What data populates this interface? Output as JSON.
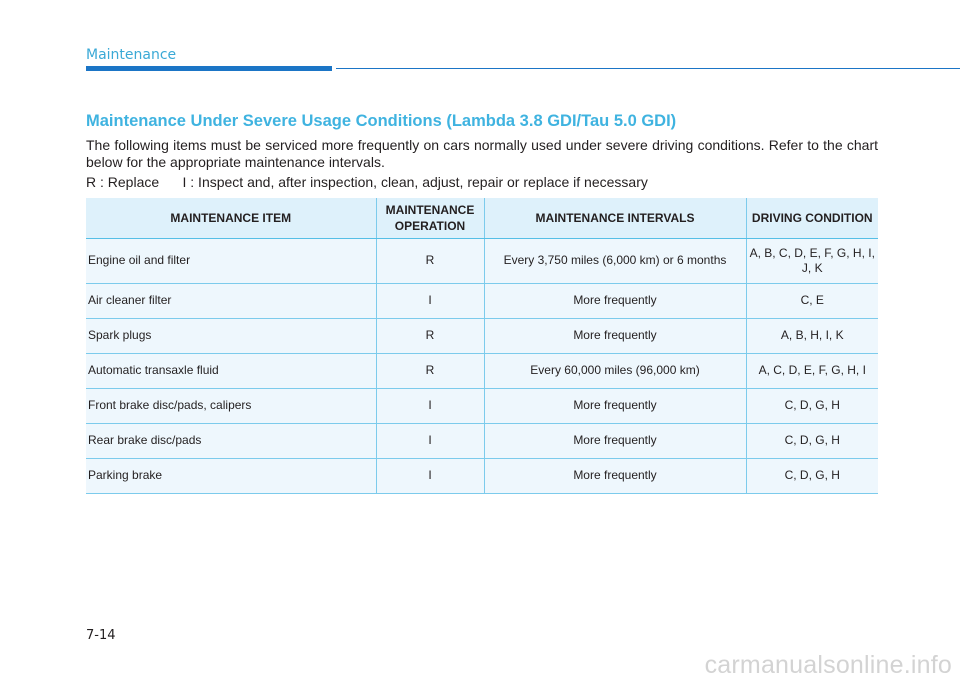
{
  "header": {
    "section": "Maintenance"
  },
  "heading": "Maintenance Under Severe Usage Conditions (Lambda 3.8 GDI/Tau 5.0 GDI)",
  "intro": "The following items must be serviced more frequently on cars normally used under severe driving conditions. Refer to the chart below for the appropriate maintenance intervals.",
  "legend": {
    "replace": "R : Replace",
    "inspect": "I : Inspect and, after inspection, clean, adjust, repair or replace if necessary"
  },
  "table": {
    "headers": [
      "MAINTENANCE ITEM",
      "MAINTENANCE OPERATION",
      "MAINTENANCE INTERVALS",
      "DRIVING CONDITION"
    ],
    "rows": [
      {
        "item": "Engine oil and filter",
        "operation": "R",
        "interval": "Every 3,750 miles (6,000 km) or 6 months",
        "condition": "A, B, C, D, E, F, G, H, I, J, K"
      },
      {
        "item": "Air cleaner filter",
        "operation": "I",
        "interval": "More frequently",
        "condition": "C, E"
      },
      {
        "item": "Spark plugs",
        "operation": "R",
        "interval": "More frequently",
        "condition": "A, B, H, I, K"
      },
      {
        "item": "Automatic transaxle fluid",
        "operation": "R",
        "interval": "Every 60,000 miles (96,000 km)",
        "condition": "A, C, D, E, F, G, H, I"
      },
      {
        "item": "Front brake disc/pads, calipers",
        "operation": "I",
        "interval": "More frequently",
        "condition": "C, D, G, H"
      },
      {
        "item": "Rear brake disc/pads",
        "operation": "I",
        "interval": "More frequently",
        "condition": "C, D, G, H"
      },
      {
        "item": "Parking brake",
        "operation": "I",
        "interval": "More frequently",
        "condition": "C, D, G, H"
      }
    ]
  },
  "footer": {
    "page_number": "7-14",
    "watermark": "carmanualsonline.info"
  },
  "colors": {
    "accent": "#3fb3e0",
    "rule": "#1b75c6",
    "header_fill": "#def1fb",
    "row_fill": "#eef7fd"
  }
}
